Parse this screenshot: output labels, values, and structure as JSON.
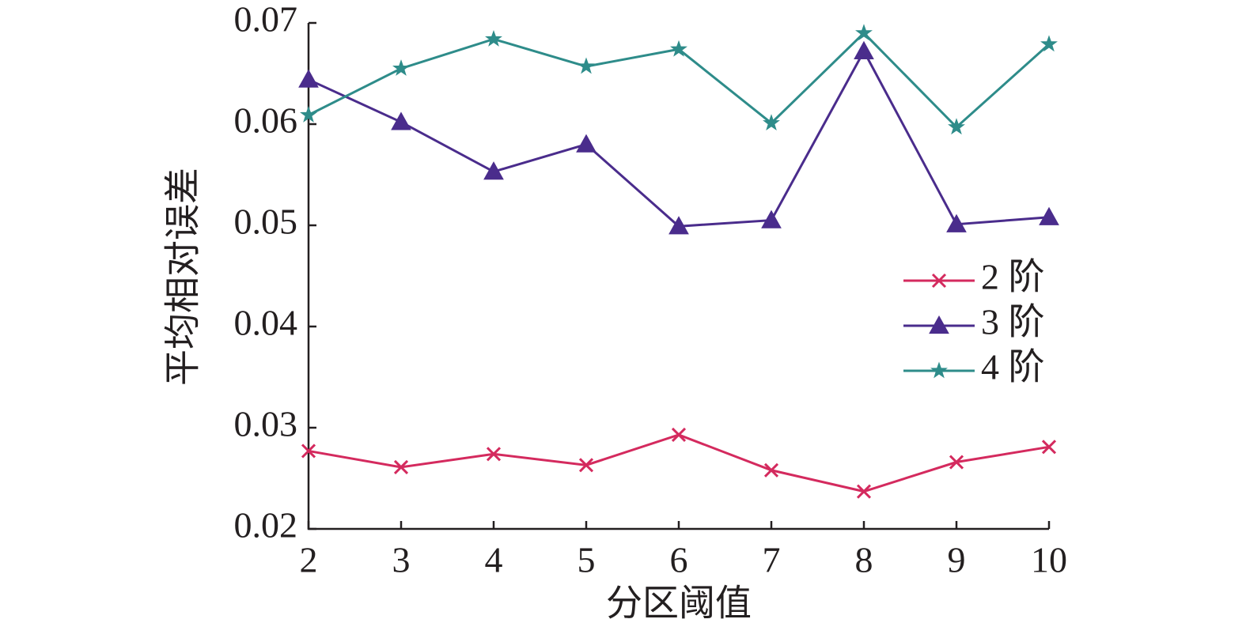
{
  "chart_data": {
    "type": "line",
    "x_label": "分区阈值",
    "y_label": "平均相对误差",
    "x": [
      2,
      3,
      4,
      5,
      6,
      7,
      8,
      9,
      10
    ],
    "xlim": [
      2,
      10
    ],
    "xticks": [
      2,
      3,
      4,
      5,
      6,
      7,
      8,
      9,
      10
    ],
    "ylim": [
      0.02,
      0.07
    ],
    "yticks": [
      0.02,
      0.03,
      0.04,
      0.05,
      0.06,
      0.07
    ],
    "series": [
      {
        "name": "2 阶",
        "color": "#d42a5e",
        "marker": "x",
        "values": [
          0.0277,
          0.0261,
          0.0274,
          0.0263,
          0.0293,
          0.0258,
          0.0237,
          0.0266,
          0.0281
        ]
      },
      {
        "name": "3 阶",
        "color": "#4a2c8c",
        "marker": "triangle",
        "values": [
          0.0644,
          0.0602,
          0.0553,
          0.058,
          0.0499,
          0.0505,
          0.0672,
          0.0501,
          0.0508
        ]
      },
      {
        "name": "4 阶",
        "color": "#2e8c8a",
        "marker": "star",
        "values": [
          0.0609,
          0.0655,
          0.0684,
          0.0657,
          0.0674,
          0.0601,
          0.069,
          0.0597,
          0.0679
        ]
      }
    ]
  }
}
